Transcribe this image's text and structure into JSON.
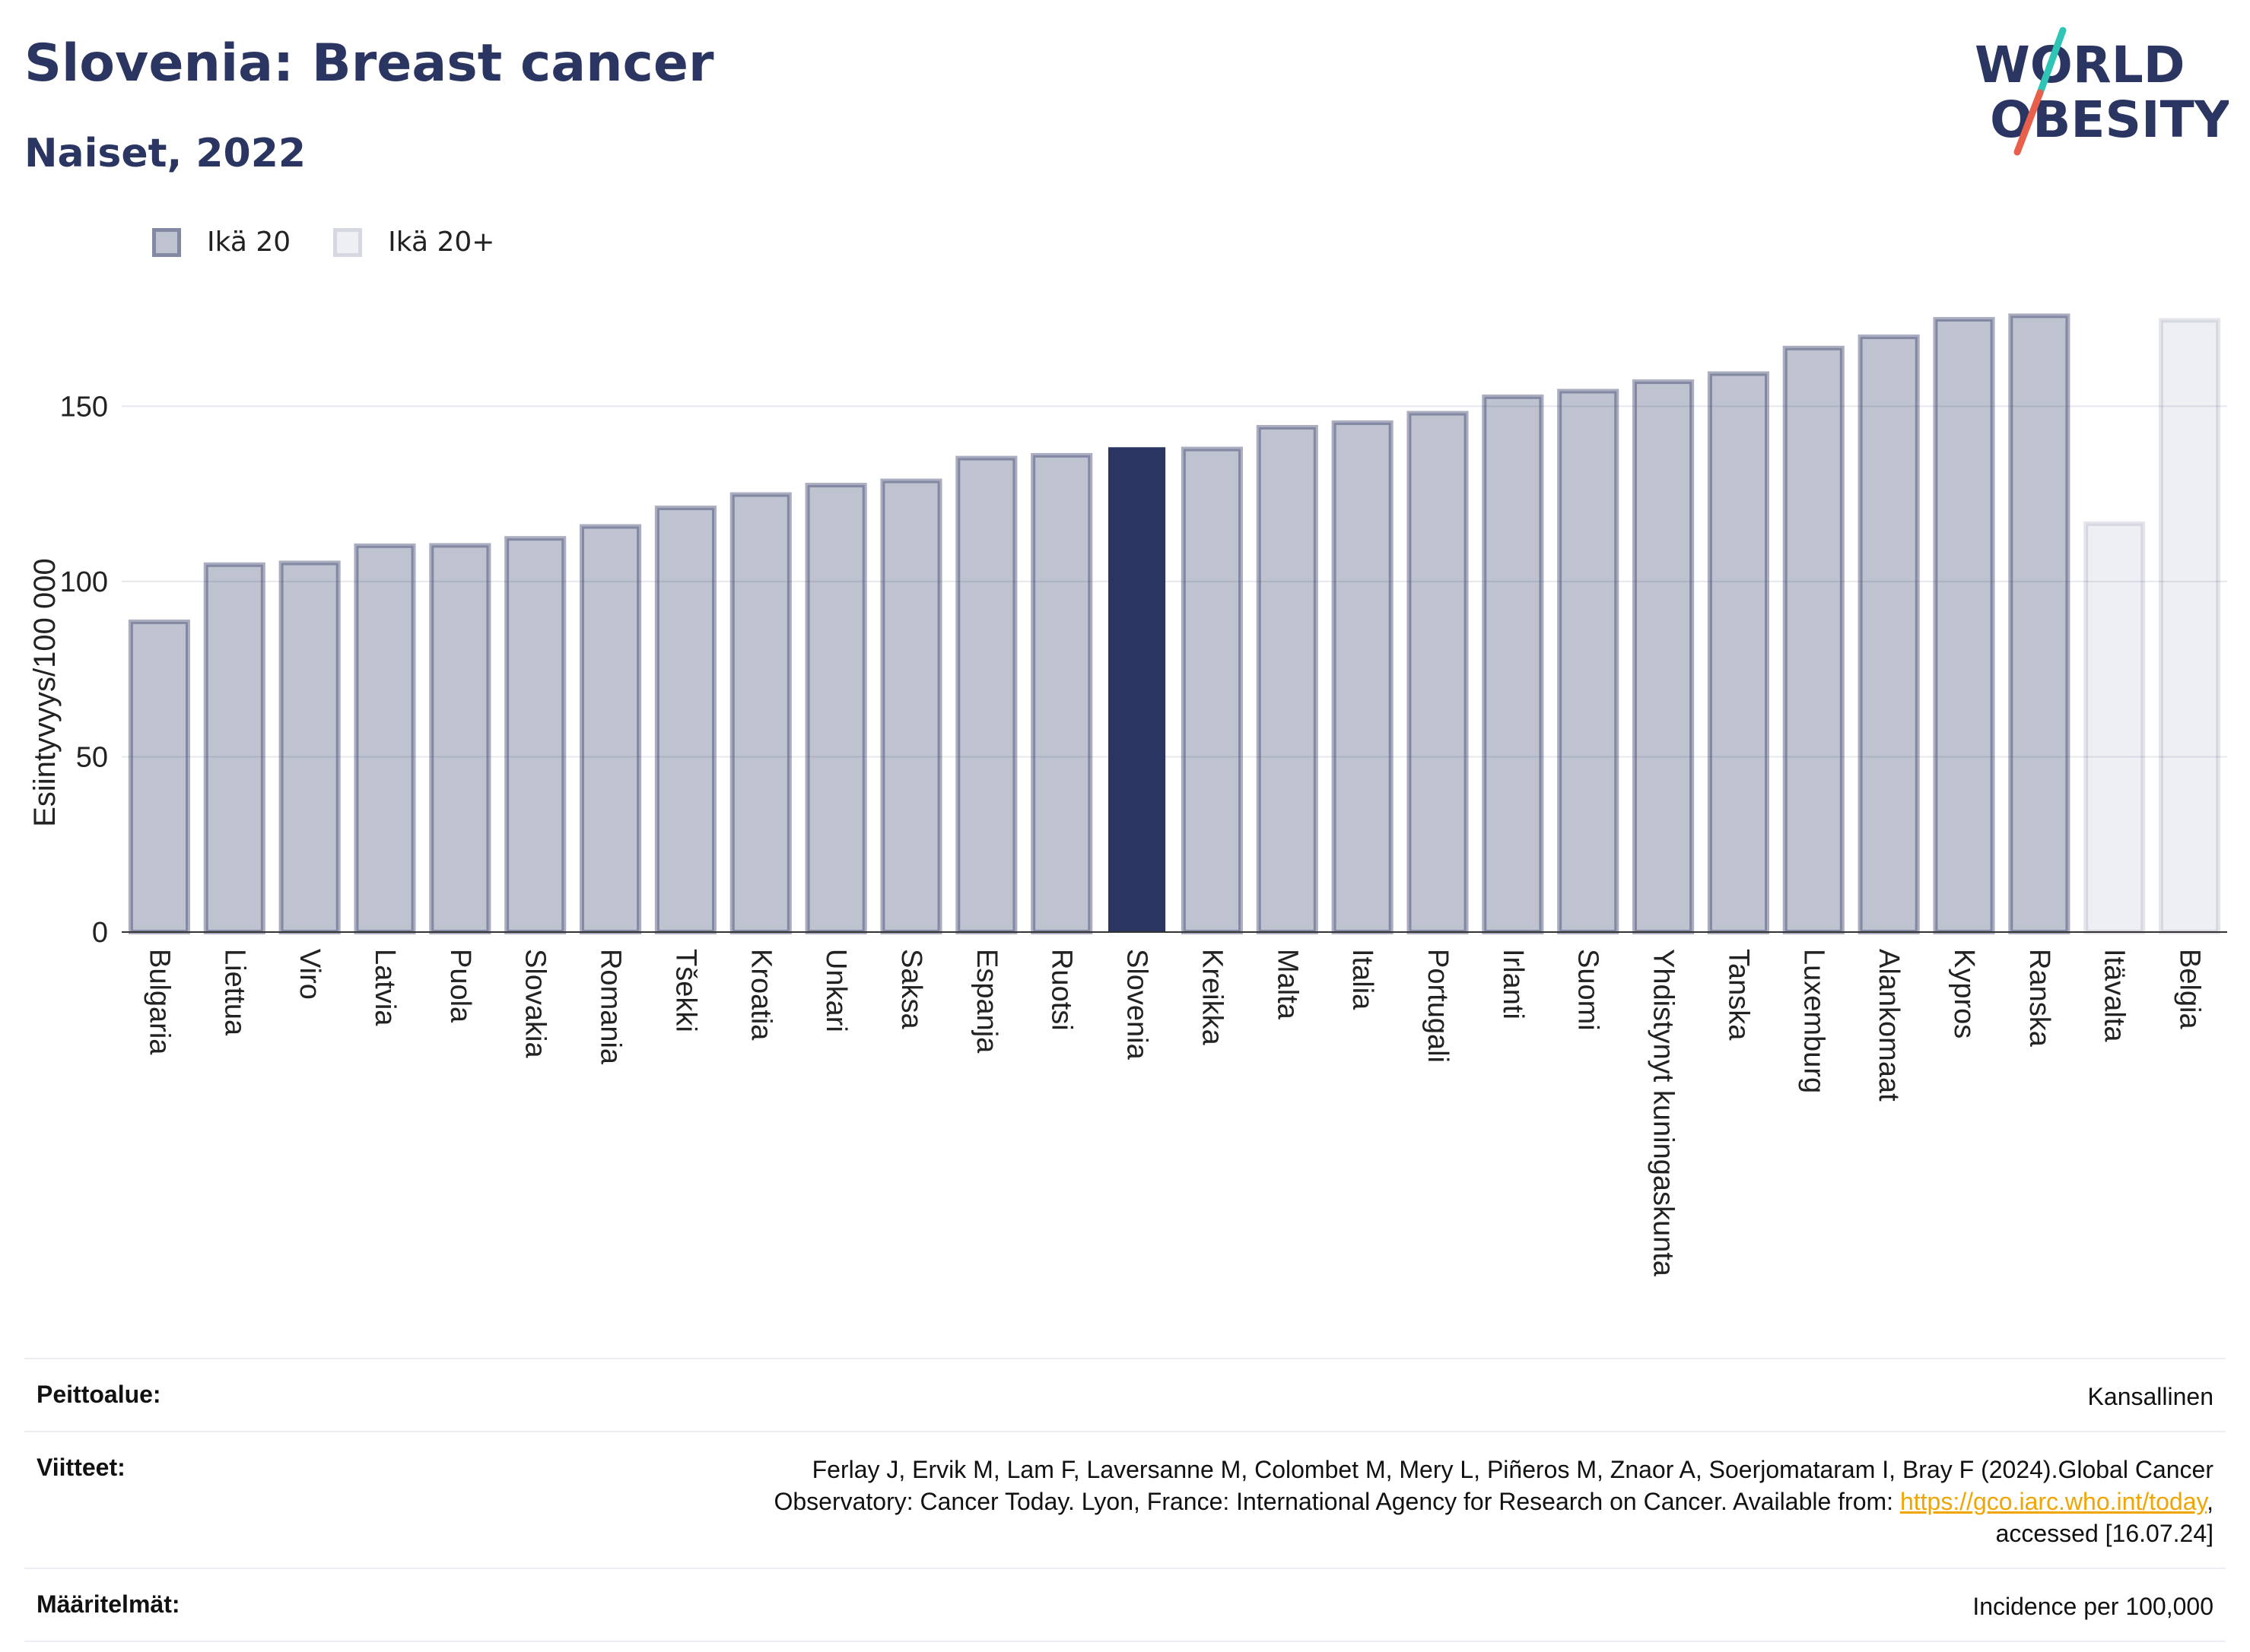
{
  "header": {
    "title": "Slovenia: Breast cancer",
    "subtitle": "Naiset, 2022",
    "logo_line1": "WORLD",
    "logo_line2": "OBESITY"
  },
  "legend": {
    "items": [
      {
        "label": "Ikä 20"
      },
      {
        "label": "Ikä 20+"
      }
    ]
  },
  "colors": {
    "highlight": "#2b3561",
    "bar_fill": "rgba(43,53,97,0.3)",
    "bar_fill_light": "rgba(43,53,97,0.08)",
    "logo_teal": "#2ec4b6",
    "logo_coral": "#e8604c"
  },
  "chart_data": {
    "type": "bar",
    "ylabel": "Esiintyvyys/100 000",
    "ylim": [
      0,
      180
    ],
    "yticks": [
      0,
      50,
      100,
      150
    ],
    "grid": true,
    "legend_position": "top-left",
    "categories": [
      "Bulgaria",
      "Liettua",
      "Viro",
      "Latvia",
      "Puola",
      "Slovakia",
      "Romania",
      "Tšekki",
      "Kroatia",
      "Unkari",
      "Saksa",
      "Espanja",
      "Ruotsi",
      "Slovenia",
      "Kreikka",
      "Malta",
      "Italia",
      "Portugali",
      "Irlanti",
      "Suomi",
      "Yhdistynyt kuningaskunta",
      "Tanska",
      "Luxemburg",
      "Alankomaat",
      "Kypros",
      "Ranska",
      "Itävalta",
      "Belgia"
    ],
    "values": [
      88.5,
      104.8,
      105.3,
      110.2,
      110.3,
      112.3,
      115.7,
      121.0,
      124.8,
      127.5,
      128.7,
      135.2,
      136.0,
      138.3,
      137.8,
      144.0,
      145.3,
      148.0,
      152.7,
      154.3,
      157.0,
      159.3,
      166.6,
      169.8,
      174.8,
      175.8,
      116.5,
      174.5
    ],
    "series_group": [
      "Ikä 20",
      "Ikä 20",
      "Ikä 20",
      "Ikä 20",
      "Ikä 20",
      "Ikä 20",
      "Ikä 20",
      "Ikä 20",
      "Ikä 20",
      "Ikä 20",
      "Ikä 20",
      "Ikä 20",
      "Ikä 20",
      "Ikä 20",
      "Ikä 20",
      "Ikä 20",
      "Ikä 20",
      "Ikä 20",
      "Ikä 20",
      "Ikä 20",
      "Ikä 20",
      "Ikä 20",
      "Ikä 20",
      "Ikä 20",
      "Ikä 20",
      "Ikä 20",
      "Ikä 20+",
      "Ikä 20+"
    ],
    "highlight": "Slovenia"
  },
  "footer": {
    "coverage_label": "Peittoalue:",
    "coverage_value": "Kansallinen",
    "references_label": "Viitteet:",
    "references_line1": "Ferlay J, Ervik M, Lam F, Laversanne M, Colombet M, Mery L, Piñeros M, Znaor A, Soerjomataram I, Bray F (2024).Global Cancer",
    "references_line2_pre": "Observatory: Cancer Today. Lyon, France: International Agency for Research on Cancer. Available from: ",
    "references_link": "https://gco.iarc.who.int/today",
    "references_line2_post": ",",
    "references_line3": "accessed [16.07.24]",
    "definitions_label": "Määritelmät:",
    "definitions_value": "Incidence per 100,000"
  }
}
